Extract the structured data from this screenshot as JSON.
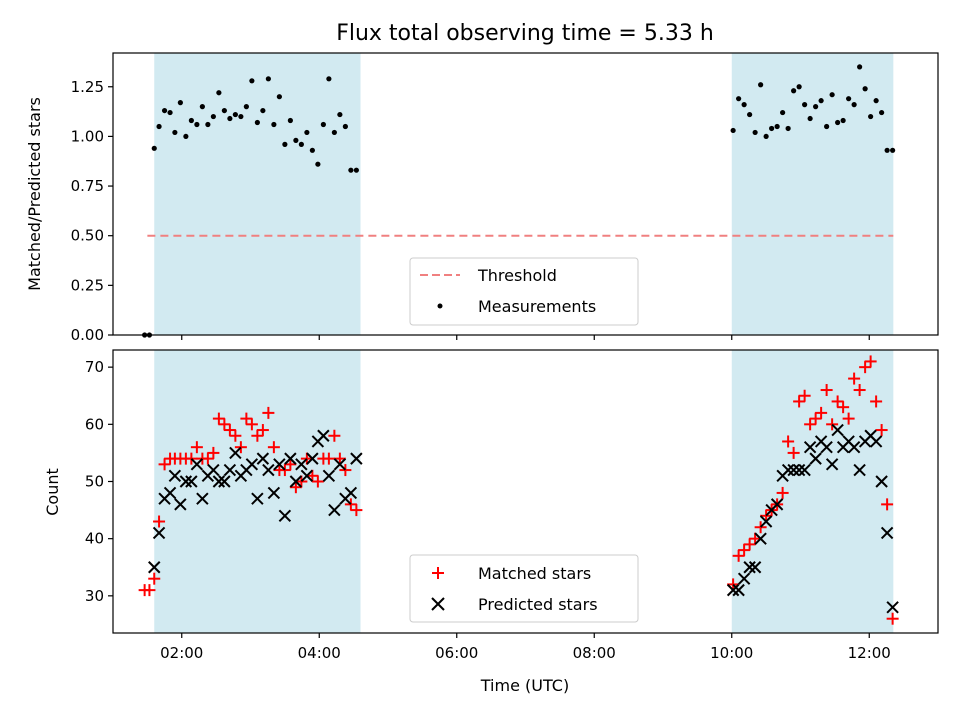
{
  "chart_data": {
    "type": "scatter",
    "title": "Flux total observing time = 5.33 h",
    "shared_x": {
      "xlabel": "Time (UTC)",
      "xlim": [
        1.0,
        13.0
      ],
      "tick_values": [
        2,
        4,
        6,
        8,
        10,
        12
      ],
      "tick_labels": [
        "02:00",
        "04:00",
        "06:00",
        "08:00",
        "10:00",
        "12:00"
      ]
    },
    "shaded_intervals": [
      [
        1.6,
        4.6
      ],
      [
        10.0,
        12.35
      ]
    ],
    "colors": {
      "shade": "#add8e6",
      "threshold": "#f08080",
      "matched": "#ff0000",
      "predicted": "#000000",
      "measurements": "#000000"
    },
    "panels": {
      "top": {
        "ylabel": "Matched/Predicted stars",
        "ylim": [
          0,
          1.42
        ],
        "yticks": [
          0.0,
          0.25,
          0.5,
          0.75,
          1.0,
          1.25
        ],
        "ytick_labels": [
          "0.00",
          "0.25",
          "0.50",
          "0.75",
          "1.00",
          "1.25"
        ],
        "threshold": {
          "name": "Threshold",
          "value": 0.5,
          "x_range": [
            1.5,
            12.35
          ]
        },
        "series": [
          {
            "name": "Measurements",
            "marker": "dot",
            "x": [
              1.46,
              1.53,
              1.6,
              1.67,
              1.75,
              1.83,
              1.9,
              1.98,
              2.06,
              2.14,
              2.22,
              2.3,
              2.38,
              2.46,
              2.54,
              2.62,
              2.7,
              2.78,
              2.86,
              2.94,
              3.02,
              3.1,
              3.18,
              3.26,
              3.34,
              3.42,
              3.5,
              3.58,
              3.66,
              3.74,
              3.82,
              3.9,
              3.98,
              4.06,
              4.14,
              4.22,
              4.3,
              4.38,
              4.46,
              4.54,
              10.02,
              10.1,
              10.18,
              10.26,
              10.34,
              10.42,
              10.5,
              10.58,
              10.66,
              10.74,
              10.82,
              10.9,
              10.98,
              11.06,
              11.14,
              11.22,
              11.3,
              11.38,
              11.46,
              11.54,
              11.62,
              11.7,
              11.78,
              11.86,
              11.94,
              12.02,
              12.1,
              12.18,
              12.26,
              12.34
            ],
            "y": [
              0.0,
              0.0,
              0.94,
              1.05,
              1.13,
              1.12,
              1.02,
              1.17,
              1.0,
              1.08,
              1.06,
              1.15,
              1.06,
              1.1,
              1.22,
              1.13,
              1.09,
              1.11,
              1.1,
              1.15,
              1.28,
              1.07,
              1.13,
              1.29,
              1.06,
              1.2,
              0.96,
              1.08,
              0.98,
              0.96,
              1.02,
              0.93,
              0.86,
              1.06,
              1.29,
              1.02,
              1.11,
              1.05,
              0.83,
              0.83,
              1.03,
              1.19,
              1.16,
              1.11,
              1.02,
              1.26,
              1.0,
              1.04,
              1.05,
              1.12,
              1.04,
              1.23,
              1.25,
              1.16,
              1.09,
              1.15,
              1.18,
              1.05,
              1.21,
              1.07,
              1.08,
              1.19,
              1.16,
              1.35,
              1.24,
              1.1,
              1.18,
              1.12,
              0.93,
              0.93
            ]
          }
        ],
        "legend": {
          "placement": "bottom-center",
          "entries": [
            "Threshold",
            "Measurements"
          ]
        }
      },
      "bottom": {
        "ylabel": "Count",
        "ylim": [
          23.5,
          73
        ],
        "yticks": [
          30,
          40,
          50,
          60,
          70
        ],
        "ytick_labels": [
          "30",
          "40",
          "50",
          "60",
          "70"
        ],
        "series": [
          {
            "name": "Matched stars",
            "marker": "plus",
            "x": [
              1.46,
              1.53,
              1.6,
              1.67,
              1.75,
              1.83,
              1.9,
              1.98,
              2.06,
              2.14,
              2.22,
              2.3,
              2.38,
              2.46,
              2.54,
              2.62,
              2.7,
              2.78,
              2.86,
              2.94,
              3.02,
              3.1,
              3.18,
              3.26,
              3.34,
              3.42,
              3.5,
              3.58,
              3.66,
              3.74,
              3.82,
              3.9,
              3.98,
              4.06,
              4.14,
              4.22,
              4.3,
              4.38,
              4.46,
              4.54,
              10.02,
              10.1,
              10.18,
              10.26,
              10.34,
              10.42,
              10.5,
              10.58,
              10.66,
              10.74,
              10.82,
              10.9,
              10.98,
              11.06,
              11.14,
              11.22,
              11.3,
              11.38,
              11.46,
              11.54,
              11.62,
              11.7,
              11.78,
              11.86,
              11.94,
              12.02,
              12.1,
              12.18,
              12.26,
              12.34
            ],
            "y": [
              31,
              31,
              33,
              43,
              53,
              54,
              54,
              54,
              54,
              54,
              56,
              54,
              54,
              55,
              61,
              60,
              59,
              58,
              56,
              61,
              60,
              58,
              59,
              62,
              56,
              52,
              52,
              53,
              49,
              50,
              54,
              51,
              50,
              54,
              54,
              58,
              54,
              52,
              46,
              45,
              32,
              37,
              38,
              39,
              40,
              42,
              44,
              45,
              46,
              48,
              57,
              55,
              64,
              65,
              60,
              61,
              62,
              66,
              60,
              64,
              63,
              61,
              68,
              66,
              70,
              71,
              64,
              59,
              46,
              26
            ]
          },
          {
            "name": "Predicted stars",
            "marker": "x",
            "x": [
              1.6,
              1.67,
              1.75,
              1.83,
              1.9,
              1.98,
              2.06,
              2.14,
              2.22,
              2.3,
              2.38,
              2.46,
              2.54,
              2.62,
              2.7,
              2.78,
              2.86,
              2.94,
              3.02,
              3.1,
              3.18,
              3.26,
              3.34,
              3.42,
              3.5,
              3.58,
              3.66,
              3.74,
              3.82,
              3.9,
              3.98,
              4.06,
              4.14,
              4.22,
              4.3,
              4.38,
              4.46,
              4.54,
              10.02,
              10.1,
              10.18,
              10.26,
              10.34,
              10.42,
              10.5,
              10.58,
              10.66,
              10.74,
              10.82,
              10.9,
              10.98,
              11.06,
              11.14,
              11.22,
              11.3,
              11.38,
              11.46,
              11.54,
              11.62,
              11.7,
              11.78,
              11.86,
              11.94,
              12.02,
              12.1,
              12.18,
              12.26,
              12.34
            ],
            "y": [
              35,
              41,
              47,
              48,
              51,
              46,
              50,
              50,
              53,
              47,
              51,
              52,
              50,
              50,
              52,
              55,
              51,
              52,
              53,
              47,
              54,
              52,
              48,
              53,
              44,
              54,
              50,
              53,
              51,
              54,
              57,
              58,
              51,
              45,
              53,
              47,
              48,
              54,
              31,
              31,
              33,
              35,
              35,
              40,
              43,
              45,
              46,
              51,
              52,
              52,
              52,
              52,
              56,
              54,
              57,
              56,
              53,
              59,
              56,
              57,
              56,
              52,
              57,
              58,
              57,
              50,
              41,
              28
            ]
          }
        ],
        "legend": {
          "placement": "bottom-center",
          "entries": [
            "Matched stars",
            "Predicted stars"
          ]
        }
      }
    }
  }
}
